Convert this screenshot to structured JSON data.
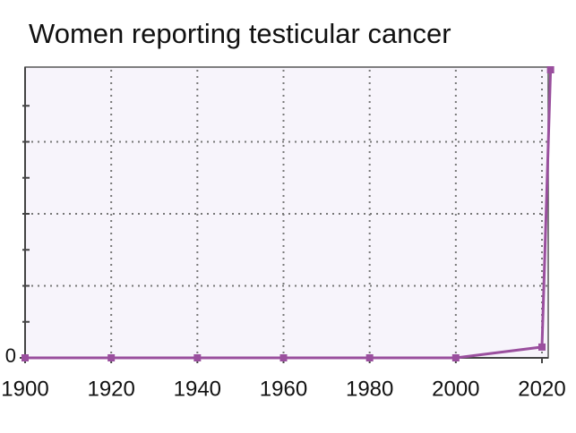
{
  "chart_data": {
    "type": "line",
    "title": "Women reporting testicular cancer",
    "x": [
      1900,
      1920,
      1940,
      1960,
      1980,
      2000,
      2020,
      2022
    ],
    "series": [
      {
        "name": "Women reporting testicular cancer",
        "color": "#9a4f9e",
        "values": [
          0,
          0,
          0,
          0,
          0,
          0,
          0.3,
          8
        ]
      }
    ],
    "xlim": [
      1900,
      2020
    ],
    "xticks": [
      1900,
      1920,
      1940,
      1960,
      1980,
      2000,
      2020
    ],
    "ylim": [
      0,
      8
    ],
    "yticks": [
      0
    ],
    "y_minor_ticks": [
      1,
      2,
      3,
      4,
      5,
      6,
      7
    ],
    "ygrid": [
      2,
      4,
      6
    ],
    "grid": true
  }
}
